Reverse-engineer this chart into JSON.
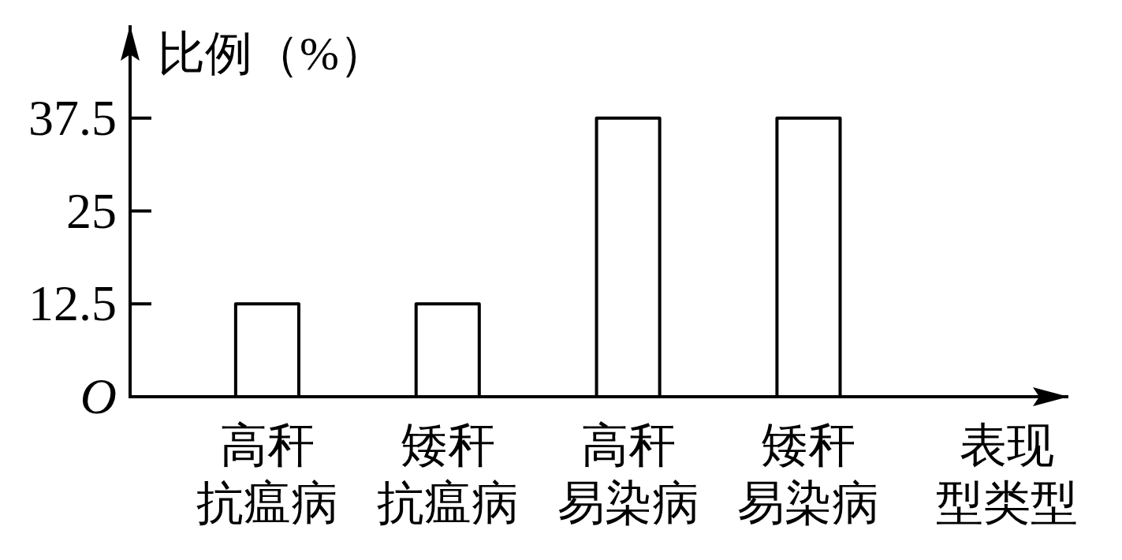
{
  "chart_data": {
    "type": "bar",
    "categories": [
      "高秆抗瘟病",
      "矮秆抗瘟病",
      "高秆易染病",
      "矮秆易染病"
    ],
    "values": [
      12.5,
      12.5,
      37.5,
      37.5
    ],
    "color": "#000000",
    "xlabel": "表现型类型",
    "ylabel": "比例（%）",
    "ylim": [
      0,
      50
    ],
    "yticks": [
      {
        "value": 0,
        "label": "O"
      },
      12.5,
      25,
      37.5
    ]
  }
}
